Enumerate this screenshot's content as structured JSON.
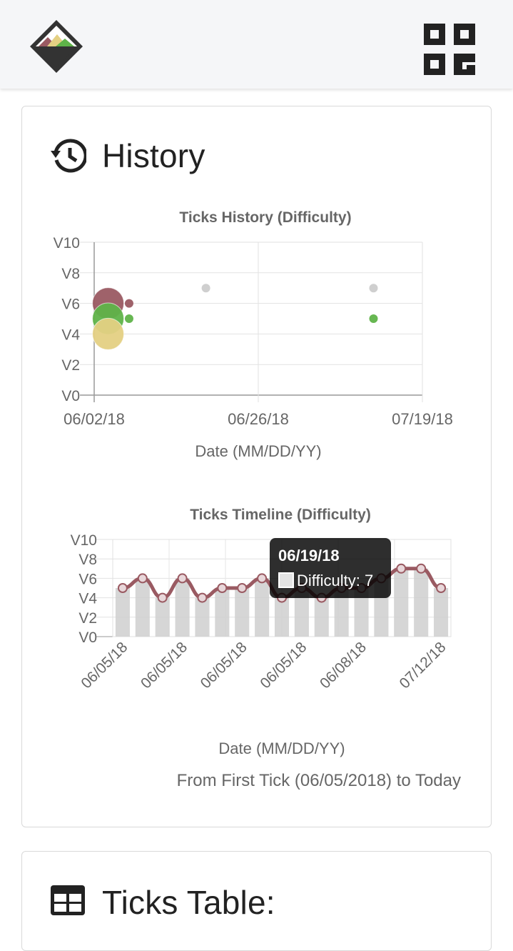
{
  "header": {
    "logo_icon": "mountain-diamond-logo-icon",
    "qr_icon": "qr-code-icon"
  },
  "history": {
    "title": "History",
    "icon": "history-clock-icon",
    "subtitle": "From First Tick (06/05/2018) to Today"
  },
  "table": {
    "title": "Ticks Table:",
    "icon": "table-grid-icon"
  },
  "tooltip": {
    "date": "06/19/18",
    "label": "Difficulty: 7"
  },
  "colors": {
    "maroon": "#9a5a62",
    "green": "#5fb349",
    "yellow": "#e4d083",
    "grey": "#cccccc",
    "bar": "#cfcfcf"
  },
  "chart_data": [
    {
      "type": "scatter",
      "title": "Ticks History (Difficulty)",
      "xlabel": "Date (MM/DD/YY)",
      "ylabel": "",
      "x_ticks": [
        "06/02/18",
        "06/26/18",
        "07/19/18"
      ],
      "y_ticks": [
        "V0",
        "V2",
        "V4",
        "V6",
        "V8",
        "V10"
      ],
      "ylim": [
        0,
        10
      ],
      "xlim_days": [
        0,
        47
      ],
      "points": [
        {
          "x": 2,
          "y": 6,
          "r": 22,
          "color": "maroon"
        },
        {
          "x": 2,
          "y": 5,
          "r": 22,
          "color": "green"
        },
        {
          "x": 2,
          "y": 4,
          "r": 22,
          "color": "yellow"
        },
        {
          "x": 5,
          "y": 6,
          "r": 6,
          "color": "maroon"
        },
        {
          "x": 5,
          "y": 5,
          "r": 6,
          "color": "green"
        },
        {
          "x": 16,
          "y": 7,
          "r": 6,
          "color": "grey"
        },
        {
          "x": 40,
          "y": 7,
          "r": 6,
          "color": "grey"
        },
        {
          "x": 40,
          "y": 5,
          "r": 6,
          "color": "green"
        }
      ]
    },
    {
      "type": "line",
      "title": "Ticks Timeline (Difficulty)",
      "xlabel": "Date (MM/DD/YY)",
      "ylabel": "",
      "x_ticks": [
        "06/05/18",
        "06/05/18",
        "06/05/18",
        "06/05/18",
        "06/08/18",
        "07/12/18"
      ],
      "y_ticks": [
        "V0",
        "V2",
        "V4",
        "V6",
        "V8",
        "V10"
      ],
      "ylim": [
        0,
        10
      ],
      "values": [
        5,
        6,
        4,
        6,
        4,
        5,
        5,
        6,
        4,
        5,
        4,
        5,
        5,
        6,
        7,
        7,
        5
      ],
      "legend_label": "Difficulty"
    }
  ]
}
